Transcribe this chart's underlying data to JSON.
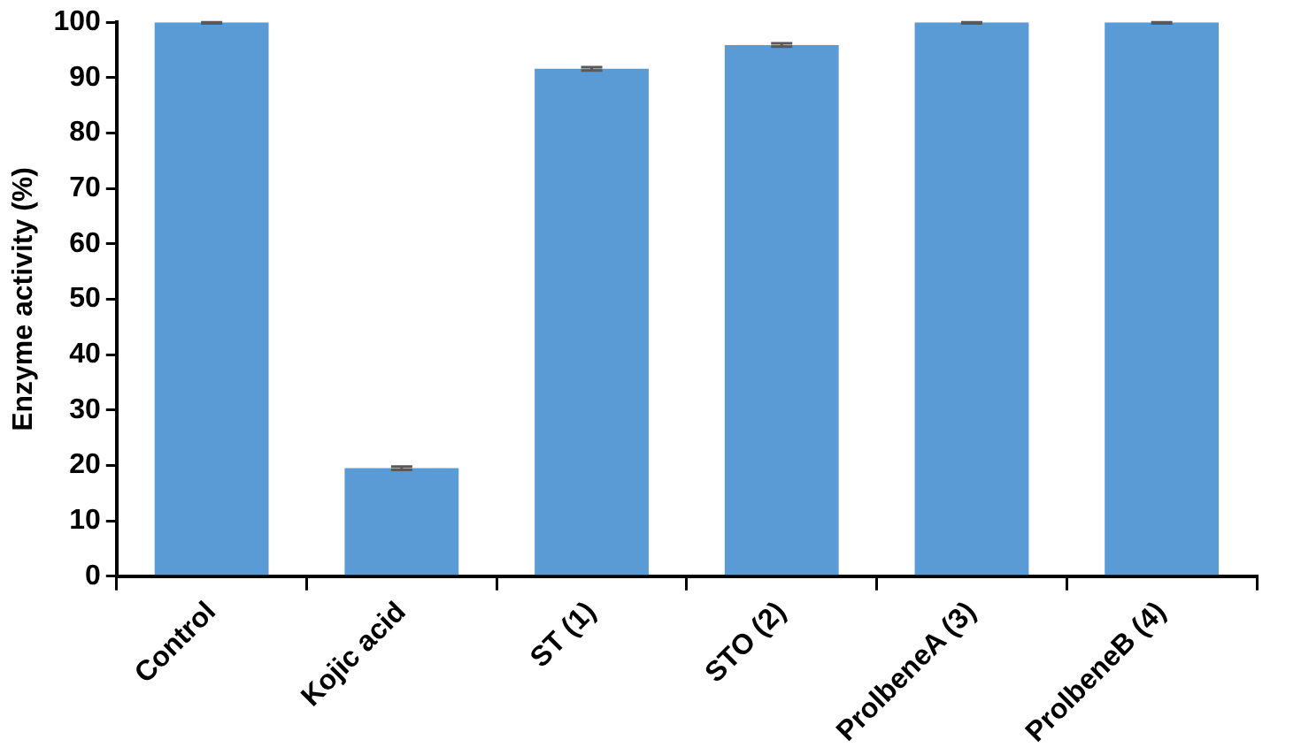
{
  "chart_data": {
    "type": "bar",
    "ylabel": "Enzyme activity (%)",
    "categories": [
      "Control",
      "Kojic acid",
      "ST (1)",
      "STO (2)",
      "ProlbeneA (3)",
      "ProlbeneB (4)"
    ],
    "values": [
      100,
      19.5,
      91.6,
      95.9,
      100,
      100
    ],
    "errors": [
      0.2,
      0.3,
      0.3,
      0.3,
      0.2,
      0.2
    ],
    "color": "#5b9bd5",
    "ylim": [
      0,
      100
    ],
    "yticks": [
      0,
      10,
      20,
      30,
      40,
      50,
      60,
      70,
      80,
      90,
      100
    ],
    "grid": false,
    "legend": false
  }
}
